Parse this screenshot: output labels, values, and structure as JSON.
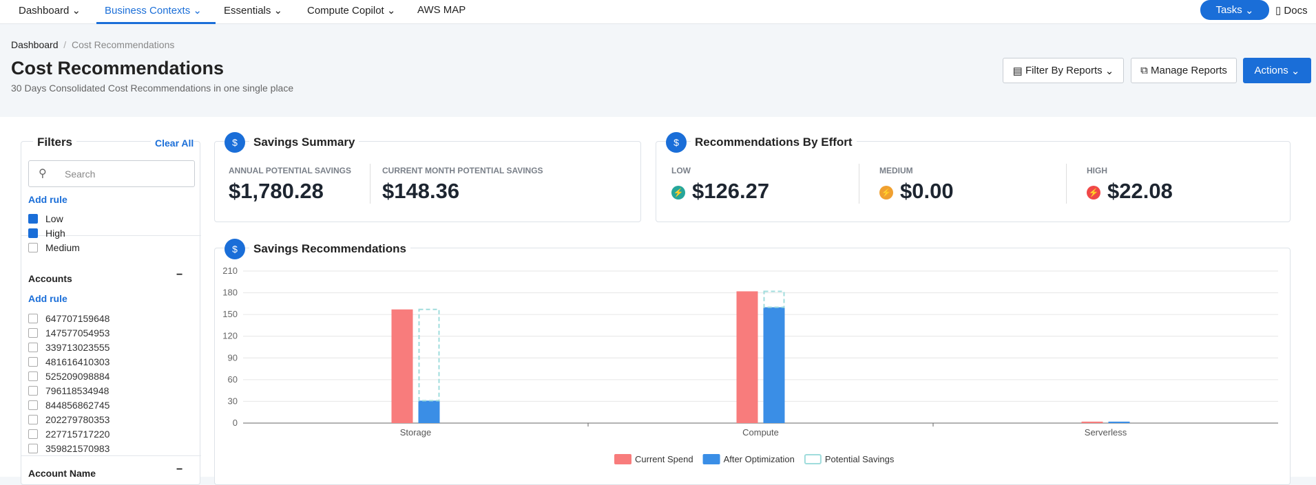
{
  "nav": {
    "items": [
      "Dashboard",
      "Business Contexts",
      "Essentials",
      "Compute Copilot",
      "AWS MAP"
    ],
    "active": 1,
    "tasks": "Tasks",
    "docs": "Docs"
  },
  "breadcrumb": [
    "Dashboard",
    "Cost Recommendations"
  ],
  "header": {
    "title": "Cost Recommendations",
    "subtitle": "30 Days Consolidated Cost Recommendations in one single place",
    "buttons": [
      "Filter By Reports",
      "Manage Reports",
      "Actions"
    ]
  },
  "filters": {
    "title": "Filters",
    "clear": "Clear All",
    "search": "Search",
    "add_rule": "Add rule",
    "effort_options": [
      {
        "label": "Low",
        "checked": true
      },
      {
        "label": "High",
        "checked": true
      },
      {
        "label": "Medium",
        "checked": false
      }
    ],
    "accounts_title": "Accounts",
    "accounts_add_rule": "Add rule",
    "accounts": [
      "647707159648",
      "147577054953",
      "339713023555",
      "481616410303",
      "525209098884",
      "796118534948",
      "844856862745",
      "202279780353",
      "227715717220",
      "359821570983"
    ],
    "account_name_title": "Account Name"
  },
  "summary": {
    "title": "Savings Summary",
    "items": [
      {
        "label": "ANNUAL POTENTIAL SAVINGS",
        "value": "$1,780.28"
      },
      {
        "label": "CURRENT MONTH POTENTIAL SAVINGS",
        "value": "$148.36"
      }
    ]
  },
  "effort": {
    "title": "Recommendations By Effort",
    "items": [
      {
        "label": "LOW",
        "value": "$126.27",
        "color": "#26a69a"
      },
      {
        "label": "MEDIUM",
        "value": "$0.00",
        "color": "#f0a030"
      },
      {
        "label": "HIGH",
        "value": "$22.08",
        "color": "#f04848"
      }
    ]
  },
  "chart_data": {
    "type": "bar",
    "title": "Savings Recommendations",
    "categories": [
      "Storage",
      "Compute",
      "Serverless"
    ],
    "series": [
      {
        "name": "Current Spend",
        "color": "#f87c7c",
        "values": [
          157,
          182,
          2
        ]
      },
      {
        "name": "After Optimization",
        "color": "#3a8ee6",
        "values": [
          31,
          160,
          2
        ]
      },
      {
        "name": "Potential Savings",
        "color": "#9fdcdc",
        "dashed": true,
        "values": [
          126,
          22,
          0
        ]
      }
    ],
    "ylim": [
      0,
      210
    ],
    "yticks": [
      0,
      30,
      60,
      90,
      120,
      150,
      180,
      210
    ],
    "grid": true
  }
}
